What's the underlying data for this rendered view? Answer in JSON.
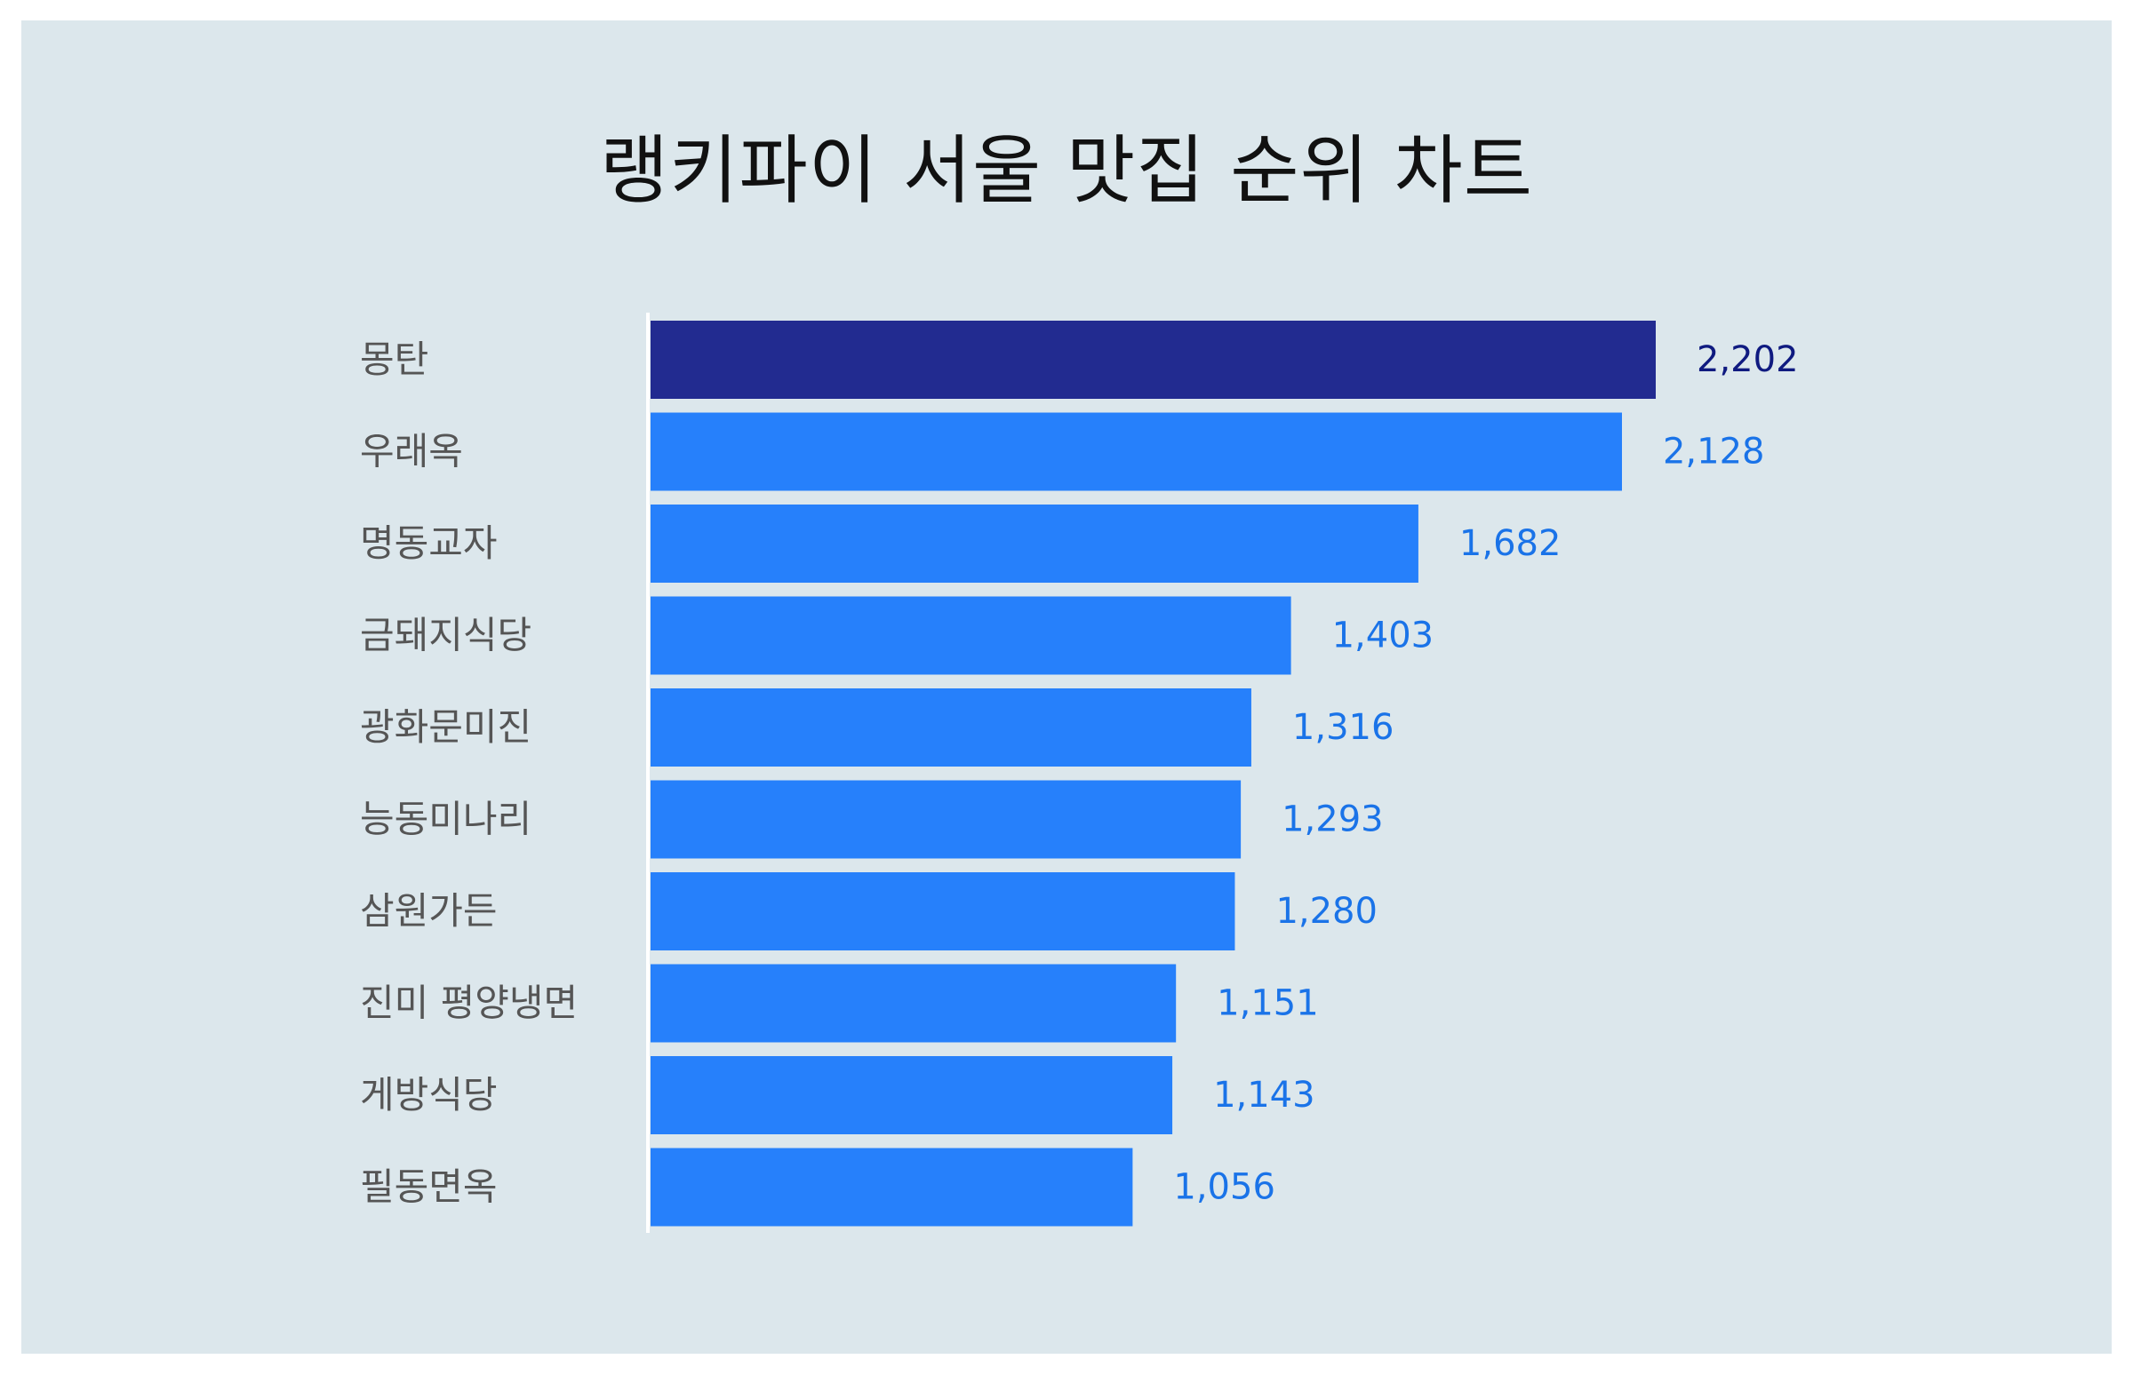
{
  "chart_data": {
    "type": "bar",
    "orientation": "horizontal",
    "title": "랭키파이 서울 맛집 순위 차트",
    "categories": [
      "몽탄",
      "우래옥",
      "명동교자",
      "금돼지식당",
      "광화문미진",
      "능동미나리",
      "삼원가든",
      "진미 평양냉면",
      "게방식당",
      "필동면옥"
    ],
    "values": [
      2202,
      2128,
      1682,
      1403,
      1316,
      1293,
      1280,
      1151,
      1143,
      1056
    ],
    "value_labels": [
      "2,202",
      "2,128",
      "1,682",
      "1,403",
      "1,316",
      "1,293",
      "1,280",
      "1,151",
      "1,143",
      "1,056"
    ],
    "xlim": [
      0,
      2202
    ],
    "grid": false,
    "legend": "none",
    "colors": {
      "highlight_bar": "#222b90",
      "bar": "#2680fb",
      "highlight_label": "#0f1a80",
      "label": "#1a73e8",
      "axis": "#ffffff"
    }
  }
}
